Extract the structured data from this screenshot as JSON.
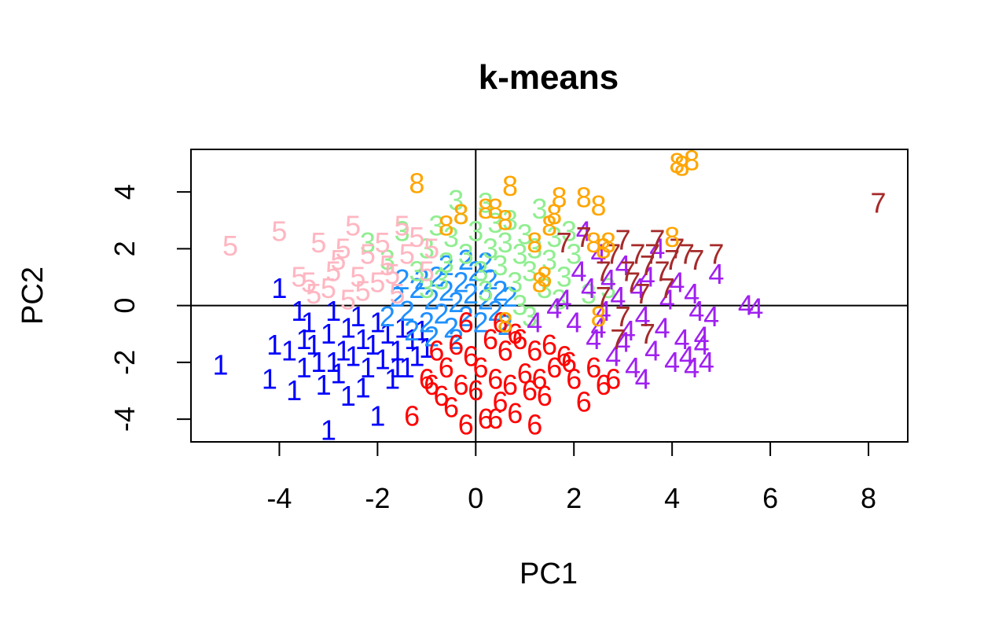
{
  "chart_data": {
    "type": "scatter",
    "title": "k-means",
    "xlabel": "PC1",
    "ylabel": "PC2",
    "xlim": [
      -5.8,
      8.8
    ],
    "ylim": [
      -4.8,
      5.5
    ],
    "xticks": [
      -4,
      -2,
      0,
      2,
      4,
      6,
      8
    ],
    "yticks": [
      -4,
      -2,
      0,
      2,
      4
    ],
    "grid": false,
    "reference_lines": {
      "x": 0,
      "y": 0
    },
    "point_symbol": "cluster number",
    "series": [
      {
        "symbol": "1",
        "color": "#0000FF",
        "points": [
          [
            -5.2,
            -2.1
          ],
          [
            -4.2,
            -2.6
          ],
          [
            -4.1,
            -1.4
          ],
          [
            -3.8,
            -1.6
          ],
          [
            -3.7,
            -3.0
          ],
          [
            -3.5,
            -1.2
          ],
          [
            -3.5,
            -2.2
          ],
          [
            -3.4,
            -0.6
          ],
          [
            -3.3,
            -1.4
          ],
          [
            -3.2,
            -2.0
          ],
          [
            -3.1,
            -2.8
          ],
          [
            -3.0,
            -4.4
          ],
          [
            -3.0,
            -1.0
          ],
          [
            -2.9,
            -0.2
          ],
          [
            -2.8,
            -2.4
          ],
          [
            -2.7,
            -1.6
          ],
          [
            -2.6,
            -0.8
          ],
          [
            -2.6,
            -3.2
          ],
          [
            -2.5,
            -1.8
          ],
          [
            -2.4,
            -0.4
          ],
          [
            -2.3,
            -1.2
          ],
          [
            -2.2,
            -2.2
          ],
          [
            -2.1,
            -1.4
          ],
          [
            -2.0,
            -0.6
          ],
          [
            -2.0,
            -3.9
          ],
          [
            -1.9,
            -1.9
          ],
          [
            -1.8,
            -1.0
          ],
          [
            -1.7,
            -2.6
          ],
          [
            -1.6,
            -1.6
          ],
          [
            -1.5,
            -0.8
          ],
          [
            -1.4,
            -2.2
          ],
          [
            -1.3,
            -1.2
          ],
          [
            -1.2,
            -1.8
          ],
          [
            -1.1,
            -0.9
          ],
          [
            -1.0,
            -1.5
          ],
          [
            -4.0,
            0.6
          ],
          [
            -3.6,
            -0.2
          ],
          [
            -2.9,
            -2.0
          ],
          [
            -2.3,
            -2.9
          ],
          [
            -1.6,
            -2.2
          ]
        ]
      },
      {
        "symbol": "2",
        "color": "#1E90FF",
        "points": [
          [
            -1.6,
            0.3
          ],
          [
            -1.4,
            -0.2
          ],
          [
            -1.2,
            0.6
          ],
          [
            -1.0,
            -0.6
          ],
          [
            -0.9,
            0.2
          ],
          [
            -0.8,
            1.0
          ],
          [
            -0.7,
            -0.3
          ],
          [
            -0.6,
            0.5
          ],
          [
            -0.5,
            -0.8
          ],
          [
            -0.4,
            0.1
          ],
          [
            -0.3,
            0.8
          ],
          [
            -0.2,
            -0.4
          ],
          [
            -0.1,
            0.4
          ],
          [
            0.0,
            1.2
          ],
          [
            0.1,
            -0.6
          ],
          [
            0.2,
            0.2
          ],
          [
            0.3,
            0.9
          ],
          [
            0.4,
            -0.2
          ],
          [
            0.5,
            0.5
          ],
          [
            -1.8,
            -0.4
          ],
          [
            -1.3,
            -0.9
          ],
          [
            -0.6,
            1.4
          ],
          [
            0.6,
            -0.7
          ],
          [
            -0.2,
            1.6
          ],
          [
            -1.1,
            0.9
          ],
          [
            0.7,
            0.3
          ],
          [
            -0.9,
            -1.1
          ],
          [
            -1.5,
            0.9
          ],
          [
            0.2,
            1.5
          ],
          [
            -0.4,
            -1.2
          ]
        ]
      },
      {
        "symbol": "3",
        "color": "#90EE90",
        "points": [
          [
            -2.2,
            2.2
          ],
          [
            -1.8,
            1.6
          ],
          [
            -1.5,
            2.6
          ],
          [
            -1.2,
            1.2
          ],
          [
            -1.0,
            2.0
          ],
          [
            -0.8,
            2.8
          ],
          [
            -0.6,
            1.5
          ],
          [
            -0.5,
            2.4
          ],
          [
            -0.3,
            3.2
          ],
          [
            -0.2,
            1.8
          ],
          [
            0.0,
            2.6
          ],
          [
            0.1,
            1.2
          ],
          [
            0.2,
            3.6
          ],
          [
            0.3,
            2.0
          ],
          [
            0.4,
            2.9
          ],
          [
            0.5,
            1.4
          ],
          [
            0.6,
            2.2
          ],
          [
            0.7,
            3.0
          ],
          [
            0.8,
            0.8
          ],
          [
            0.9,
            1.8
          ],
          [
            1.0,
            2.5
          ],
          [
            1.1,
            1.2
          ],
          [
            1.2,
            2.0
          ],
          [
            1.3,
            3.4
          ],
          [
            1.4,
            0.6
          ],
          [
            1.5,
            1.6
          ],
          [
            1.6,
            2.4
          ],
          [
            1.8,
            1.0
          ],
          [
            2.0,
            1.8
          ],
          [
            2.3,
            0.4
          ],
          [
            -0.4,
            3.7
          ],
          [
            0.2,
            0.5
          ],
          [
            0.9,
            0.0
          ],
          [
            1.1,
            -0.4
          ],
          [
            0.6,
            -0.6
          ],
          [
            -1.0,
            0.6
          ],
          [
            2.7,
            0.6
          ],
          [
            1.7,
            0.2
          ],
          [
            -0.7,
            0.9
          ],
          [
            1.9,
            2.6
          ]
        ]
      },
      {
        "symbol": "4",
        "color": "#A020F0",
        "points": [
          [
            1.8,
            0.2
          ],
          [
            2.0,
            -0.6
          ],
          [
            2.1,
            1.2
          ],
          [
            2.2,
            2.6
          ],
          [
            2.3,
            0.6
          ],
          [
            2.4,
            -1.2
          ],
          [
            2.5,
            1.8
          ],
          [
            2.6,
            -0.2
          ],
          [
            2.7,
            0.9
          ],
          [
            2.8,
            -1.8
          ],
          [
            2.9,
            0.3
          ],
          [
            3.0,
            1.4
          ],
          [
            3.1,
            -0.9
          ],
          [
            3.2,
            -2.2
          ],
          [
            3.3,
            0.6
          ],
          [
            3.4,
            -0.4
          ],
          [
            3.5,
            1.0
          ],
          [
            3.6,
            -1.6
          ],
          [
            3.7,
            2.0
          ],
          [
            3.8,
            -0.8
          ],
          [
            3.9,
            0.2
          ],
          [
            4.0,
            -2.0
          ],
          [
            4.1,
            0.8
          ],
          [
            4.2,
            -1.2
          ],
          [
            4.3,
            -1.8
          ],
          [
            4.4,
            0.4
          ],
          [
            4.5,
            -0.2
          ],
          [
            4.6,
            -1.4
          ],
          [
            4.7,
            -2.0
          ],
          [
            4.8,
            -0.4
          ],
          [
            4.9,
            1.1
          ],
          [
            5.5,
            0.0
          ],
          [
            5.7,
            -0.1
          ],
          [
            3.4,
            -2.6
          ],
          [
            1.2,
            -0.6
          ],
          [
            1.6,
            -0.1
          ],
          [
            4.4,
            -2.2
          ],
          [
            2.5,
            -0.8
          ],
          [
            3.0,
            -1.3
          ],
          [
            4.6,
            -1.1
          ]
        ]
      },
      {
        "symbol": "5",
        "color": "#FFB6C1",
        "points": [
          [
            -5.0,
            2.1
          ],
          [
            -4.0,
            2.6
          ],
          [
            -3.6,
            1.0
          ],
          [
            -3.2,
            2.2
          ],
          [
            -3.0,
            0.6
          ],
          [
            -2.8,
            1.6
          ],
          [
            -2.6,
            0.2
          ],
          [
            -2.4,
            1.0
          ],
          [
            -2.2,
            1.8
          ],
          [
            -2.0,
            0.8
          ],
          [
            -1.8,
            1.4
          ],
          [
            -1.6,
            0.4
          ],
          [
            -1.4,
            1.8
          ],
          [
            -1.2,
            2.4
          ],
          [
            -1.0,
            1.2
          ],
          [
            -2.5,
            2.8
          ],
          [
            -3.4,
            0.8
          ],
          [
            -1.5,
            2.8
          ],
          [
            -2.9,
            1.2
          ],
          [
            -1.9,
            2.2
          ],
          [
            -3.3,
            0.4
          ],
          [
            -2.3,
            0.5
          ],
          [
            -1.7,
            1.1
          ],
          [
            -0.9,
            2.0
          ],
          [
            -2.7,
            2.0
          ]
        ]
      },
      {
        "symbol": "6",
        "color": "#FF0000",
        "points": [
          [
            -1.3,
            -3.9
          ],
          [
            -1.0,
            -2.6
          ],
          [
            -0.8,
            -1.6
          ],
          [
            -0.7,
            -3.2
          ],
          [
            -0.6,
            -2.2
          ],
          [
            -0.5,
            -3.6
          ],
          [
            -0.4,
            -1.4
          ],
          [
            -0.3,
            -2.8
          ],
          [
            -0.2,
            -4.2
          ],
          [
            -0.1,
            -1.8
          ],
          [
            0.0,
            -3.0
          ],
          [
            0.1,
            -2.2
          ],
          [
            0.2,
            -4.0
          ],
          [
            0.3,
            -1.2
          ],
          [
            0.4,
            -2.6
          ],
          [
            0.5,
            -3.4
          ],
          [
            0.6,
            -1.6
          ],
          [
            0.7,
            -2.8
          ],
          [
            0.8,
            -3.8
          ],
          [
            0.9,
            -1.2
          ],
          [
            1.0,
            -2.4
          ],
          [
            1.1,
            -3.0
          ],
          [
            1.2,
            -1.6
          ],
          [
            1.3,
            -2.6
          ],
          [
            1.4,
            -3.2
          ],
          [
            1.5,
            -1.4
          ],
          [
            1.6,
            -2.2
          ],
          [
            1.8,
            -1.8
          ],
          [
            2.0,
            -2.6
          ],
          [
            2.2,
            -3.4
          ],
          [
            2.4,
            -2.2
          ],
          [
            2.6,
            -2.8
          ],
          [
            2.8,
            -2.6
          ],
          [
            1.2,
            -4.2
          ],
          [
            0.4,
            -4.0
          ],
          [
            -0.2,
            -0.6
          ],
          [
            0.5,
            -0.6
          ],
          [
            1.9,
            -2.0
          ],
          [
            0.8,
            -1.0
          ],
          [
            -0.9,
            -2.8
          ]
        ]
      },
      {
        "symbol": "7",
        "color": "#A52A2A",
        "points": [
          [
            1.8,
            2.2
          ],
          [
            2.2,
            2.4
          ],
          [
            2.6,
            1.2
          ],
          [
            2.8,
            1.8
          ],
          [
            3.0,
            2.3
          ],
          [
            3.1,
            1.2
          ],
          [
            3.2,
            0.8
          ],
          [
            3.3,
            1.8
          ],
          [
            3.4,
            0.4
          ],
          [
            3.5,
            1.4
          ],
          [
            3.6,
            1.8
          ],
          [
            3.7,
            2.3
          ],
          [
            3.8,
            1.2
          ],
          [
            4.0,
            1.6
          ],
          [
            4.1,
            2.0
          ],
          [
            4.3,
            1.8
          ],
          [
            4.5,
            1.6
          ],
          [
            4.9,
            1.8
          ],
          [
            8.2,
            3.6
          ],
          [
            3.5,
            -1.0
          ],
          [
            2.6,
            0.3
          ],
          [
            3.0,
            -0.4
          ],
          [
            3.9,
            0.6
          ],
          [
            2.9,
            -1.2
          ]
        ]
      },
      {
        "symbol": "8",
        "color": "#FFA500",
        "points": [
          [
            -1.2,
            4.3
          ],
          [
            -0.6,
            2.8
          ],
          [
            -0.3,
            3.2
          ],
          [
            0.2,
            3.4
          ],
          [
            0.4,
            3.4
          ],
          [
            0.6,
            3.0
          ],
          [
            0.7,
            4.2
          ],
          [
            1.3,
            0.8
          ],
          [
            1.4,
            1.0
          ],
          [
            1.5,
            2.8
          ],
          [
            1.6,
            3.2
          ],
          [
            1.7,
            3.8
          ],
          [
            2.2,
            3.8
          ],
          [
            2.4,
            2.2
          ],
          [
            2.5,
            3.5
          ],
          [
            2.6,
            2.0
          ],
          [
            4.0,
            2.4
          ],
          [
            4.1,
            5.0
          ],
          [
            4.2,
            4.9
          ],
          [
            4.4,
            5.1
          ],
          [
            2.5,
            -0.4
          ],
          [
            0.6,
            -0.6
          ],
          [
            1.2,
            2.2
          ],
          [
            2.7,
            2.2
          ]
        ]
      }
    ]
  }
}
